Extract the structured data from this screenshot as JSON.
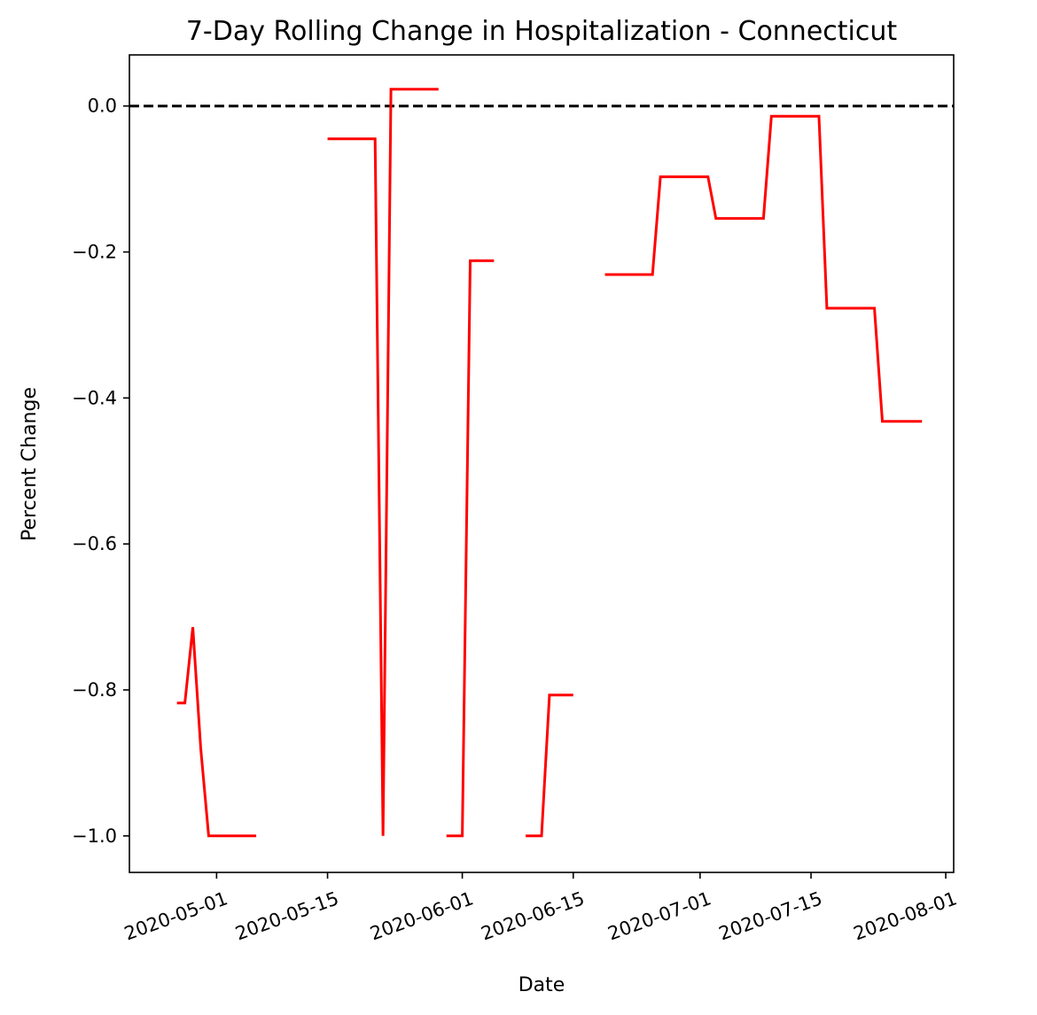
{
  "chart_data": {
    "type": "line",
    "title": "7-Day Rolling Change in Hospitalization - Connecticut",
    "xlabel": "Date",
    "ylabel": "Percent Change",
    "xlim": [
      "2020-04-20",
      "2020-08-02"
    ],
    "ylim": [
      -1.05,
      0.07
    ],
    "xticks": [
      "2020-05-01",
      "2020-05-15",
      "2020-06-01",
      "2020-06-15",
      "2020-07-01",
      "2020-07-15",
      "2020-08-01"
    ],
    "yticks": [
      0.0,
      -0.2,
      -0.4,
      -0.6,
      -0.8,
      -1.0
    ],
    "ytick_labels": [
      "0.0",
      "−0.2",
      "−0.4",
      "−0.6",
      "−0.8",
      "−1.0"
    ],
    "reference_line": {
      "y": 0.0,
      "style": "dashed",
      "color": "#000000"
    },
    "series": [
      {
        "color": "#ff0000",
        "segments": [
          [
            [
              "2020-04-26",
              -0.818
            ],
            [
              "2020-04-27",
              -0.818
            ],
            [
              "2020-04-28",
              -0.714
            ],
            [
              "2020-04-29",
              -0.88
            ],
            [
              "2020-04-30",
              -1.0
            ],
            [
              "2020-05-01",
              -1.0
            ],
            [
              "2020-05-02",
              -1.0
            ],
            [
              "2020-05-03",
              -1.0
            ],
            [
              "2020-05-04",
              -1.0
            ],
            [
              "2020-05-05",
              -1.0
            ],
            [
              "2020-05-06",
              -1.0
            ]
          ],
          [
            [
              "2020-05-15",
              -0.045
            ],
            [
              "2020-05-16",
              -0.045
            ],
            [
              "2020-05-17",
              -0.045
            ],
            [
              "2020-05-18",
              -0.045
            ],
            [
              "2020-05-19",
              -0.045
            ],
            [
              "2020-05-20",
              -0.045
            ],
            [
              "2020-05-21",
              -0.045
            ],
            [
              "2020-05-22",
              -1.0
            ],
            [
              "2020-05-23",
              0.023
            ],
            [
              "2020-05-24",
              0.023
            ],
            [
              "2020-05-25",
              0.023
            ],
            [
              "2020-05-26",
              0.023
            ],
            [
              "2020-05-27",
              0.023
            ],
            [
              "2020-05-28",
              0.023
            ],
            [
              "2020-05-29",
              0.023
            ]
          ],
          [
            [
              "2020-05-30",
              -1.0
            ],
            [
              "2020-05-31",
              -1.0
            ],
            [
              "2020-06-01",
              -1.0
            ],
            [
              "2020-06-02",
              -0.212
            ],
            [
              "2020-06-03",
              -0.212
            ],
            [
              "2020-06-04",
              -0.212
            ],
            [
              "2020-06-05",
              -0.212
            ]
          ],
          [
            [
              "2020-06-09",
              -1.0
            ],
            [
              "2020-06-10",
              -1.0
            ],
            [
              "2020-06-11",
              -1.0
            ],
            [
              "2020-06-12",
              -0.807
            ],
            [
              "2020-06-13",
              -0.807
            ],
            [
              "2020-06-14",
              -0.807
            ],
            [
              "2020-06-15",
              -0.807
            ]
          ],
          [
            [
              "2020-06-19",
              -0.231
            ],
            [
              "2020-06-20",
              -0.231
            ],
            [
              "2020-06-21",
              -0.231
            ],
            [
              "2020-06-22",
              -0.231
            ],
            [
              "2020-06-23",
              -0.231
            ],
            [
              "2020-06-24",
              -0.231
            ],
            [
              "2020-06-25",
              -0.231
            ],
            [
              "2020-06-26",
              -0.097
            ],
            [
              "2020-06-27",
              -0.097
            ],
            [
              "2020-06-28",
              -0.097
            ],
            [
              "2020-06-29",
              -0.097
            ],
            [
              "2020-06-30",
              -0.097
            ],
            [
              "2020-07-01",
              -0.097
            ],
            [
              "2020-07-02",
              -0.097
            ],
            [
              "2020-07-03",
              -0.154
            ],
            [
              "2020-07-04",
              -0.154
            ],
            [
              "2020-07-05",
              -0.154
            ],
            [
              "2020-07-06",
              -0.154
            ],
            [
              "2020-07-07",
              -0.154
            ],
            [
              "2020-07-08",
              -0.154
            ],
            [
              "2020-07-09",
              -0.154
            ],
            [
              "2020-07-10",
              -0.014
            ],
            [
              "2020-07-11",
              -0.014
            ],
            [
              "2020-07-12",
              -0.014
            ],
            [
              "2020-07-13",
              -0.014
            ],
            [
              "2020-07-14",
              -0.014
            ],
            [
              "2020-07-15",
              -0.014
            ],
            [
              "2020-07-16",
              -0.014
            ],
            [
              "2020-07-17",
              -0.277
            ],
            [
              "2020-07-18",
              -0.277
            ],
            [
              "2020-07-19",
              -0.277
            ],
            [
              "2020-07-20",
              -0.277
            ],
            [
              "2020-07-21",
              -0.277
            ],
            [
              "2020-07-22",
              -0.277
            ],
            [
              "2020-07-23",
              -0.277
            ],
            [
              "2020-07-24",
              -0.432
            ],
            [
              "2020-07-25",
              -0.432
            ],
            [
              "2020-07-26",
              -0.432
            ],
            [
              "2020-07-27",
              -0.432
            ],
            [
              "2020-07-28",
              -0.432
            ],
            [
              "2020-07-29",
              -0.432
            ]
          ]
        ]
      }
    ],
    "grid": false,
    "legend": "none"
  }
}
